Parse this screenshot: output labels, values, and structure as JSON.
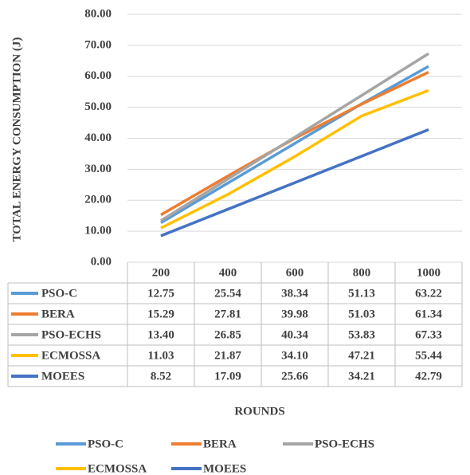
{
  "chart_data": {
    "type": "line",
    "y_label": "TOTAL ENERGY CONSUMPTION (J)",
    "x_label": "ROUNDS",
    "categories": [
      "200",
      "400",
      "600",
      "800",
      "1000"
    ],
    "series": [
      {
        "name": "PSO-C",
        "color": "#5b9bd5",
        "values": [
          12.75,
          25.54,
          38.34,
          51.13,
          63.22
        ],
        "value_labels": [
          "12.75",
          "25.54",
          "38.34",
          "51.13",
          "63.22"
        ]
      },
      {
        "name": "BERA",
        "color": "#ed7d31",
        "values": [
          15.29,
          27.81,
          39.98,
          51.03,
          61.34
        ],
        "value_labels": [
          "15.29",
          "27.81",
          "39.98",
          "51.03",
          "61.34"
        ]
      },
      {
        "name": "PSO-ECHS",
        "color": "#a5a5a5",
        "values": [
          13.4,
          26.85,
          40.34,
          53.83,
          67.33
        ],
        "value_labels": [
          "13.40",
          "26.85",
          "40.34",
          "53.83",
          "67.33"
        ]
      },
      {
        "name": "ECMOSSA",
        "color": "#ffc000",
        "values": [
          11.03,
          21.87,
          34.1,
          47.21,
          55.44
        ],
        "value_labels": [
          "11.03",
          "21.87",
          "34.10",
          "47.21",
          "55.44"
        ]
      },
      {
        "name": "MOEES",
        "color": "#4472c4",
        "values": [
          8.52,
          17.09,
          25.66,
          34.21,
          42.79
        ],
        "value_labels": [
          "8.52",
          "17.09",
          "25.66",
          "34.21",
          "42.79"
        ]
      }
    ],
    "ylim": [
      0,
      80
    ],
    "yticks": [
      {
        "value": 0,
        "label": "0.00"
      },
      {
        "value": 10,
        "label": "10.00"
      },
      {
        "value": 20,
        "label": "20.00"
      },
      {
        "value": 30,
        "label": "30.00"
      },
      {
        "value": 40,
        "label": "40.00"
      },
      {
        "value": 50,
        "label": "50.00"
      },
      {
        "value": 60,
        "label": "60.00"
      },
      {
        "value": 70,
        "label": "70.00"
      },
      {
        "value": 80,
        "label": "80.00"
      }
    ],
    "grid": true
  }
}
